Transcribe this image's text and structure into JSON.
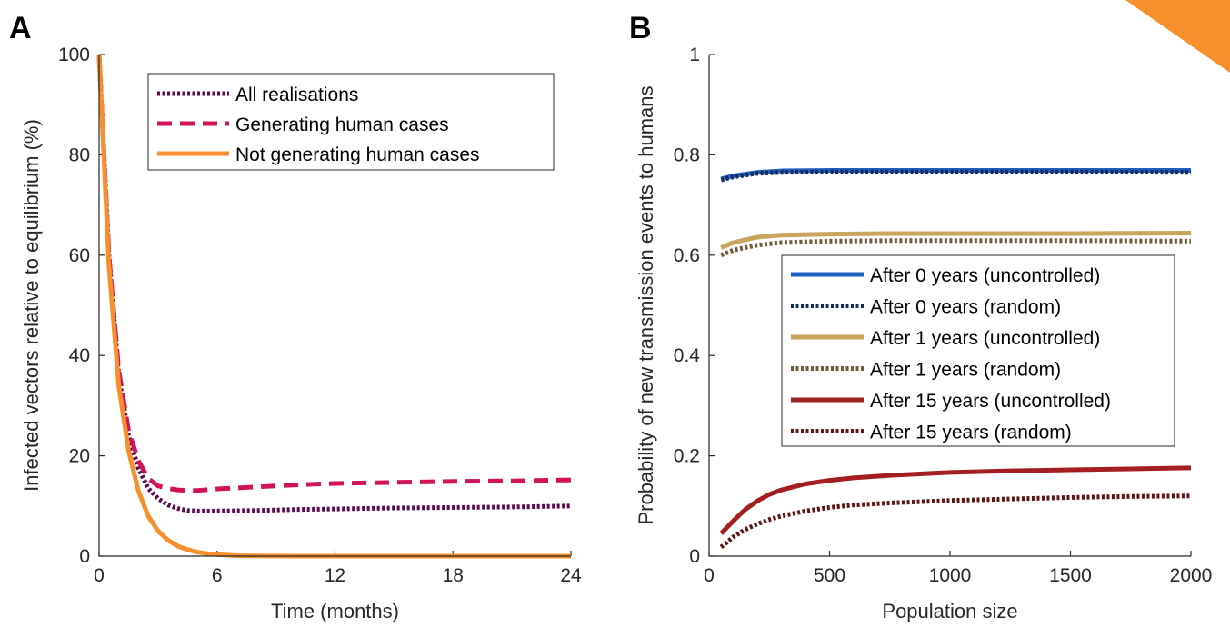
{
  "chart_data": [
    {
      "panel": "A",
      "type": "line",
      "xlabel": "Time (months)",
      "ylabel": "Infected vectors relative to equilibrium (%)",
      "xlim": [
        0,
        24
      ],
      "ylim": [
        0,
        100
      ],
      "xticks": [
        "0",
        "6",
        "12",
        "18",
        "24"
      ],
      "yticks": [
        "0",
        "20",
        "40",
        "60",
        "80",
        "100"
      ],
      "legend_position": "top-right",
      "series": [
        {
          "name": "All realisations",
          "color": "#5c0a4e",
          "style": "dotted",
          "x": [
            0,
            0.5,
            1,
            1.5,
            2,
            2.5,
            3,
            3.5,
            4,
            4.5,
            5,
            6,
            8,
            10,
            12,
            15,
            18,
            21,
            24
          ],
          "y": [
            100,
            60,
            36,
            24,
            17.5,
            13.5,
            11.5,
            10.2,
            9.5,
            9.1,
            9.0,
            9.0,
            9.1,
            9.3,
            9.4,
            9.6,
            9.7,
            9.8,
            10.0
          ]
        },
        {
          "name": "Generating human cases",
          "color": "#d1145a",
          "style": "dashed",
          "x": [
            0,
            0.5,
            1,
            1.5,
            2,
            2.5,
            3,
            3.5,
            4,
            4.5,
            5,
            6,
            8,
            10,
            12,
            15,
            18,
            21,
            24
          ],
          "y": [
            100,
            60,
            37,
            25,
            19,
            15.5,
            14,
            13.5,
            13.2,
            13.1,
            13.1,
            13.4,
            13.8,
            14.2,
            14.5,
            14.7,
            14.9,
            15.0,
            15.2
          ]
        },
        {
          "name": "Not generating human cases",
          "color": "#f7902c",
          "style": "solid",
          "x": [
            0,
            0.5,
            1,
            1.5,
            2,
            2.5,
            3,
            3.5,
            4,
            4.5,
            5,
            5.5,
            6,
            7,
            8,
            10,
            12,
            18,
            24
          ],
          "y": [
            100,
            58,
            34,
            21,
            13,
            8,
            5,
            3.2,
            2,
            1.3,
            0.8,
            0.5,
            0.3,
            0.1,
            0.05,
            0,
            0,
            0,
            0
          ]
        }
      ]
    },
    {
      "panel": "B",
      "type": "line",
      "xlabel": "Population size",
      "ylabel": "Probability of new transmission events to humans",
      "xlim": [
        0,
        2000
      ],
      "ylim": [
        0,
        1
      ],
      "xticks": [
        "0",
        "500",
        "1000",
        "1500",
        "2000"
      ],
      "yticks": [
        "0",
        "0.2",
        "0.4",
        "0.6",
        "0.8",
        "1"
      ],
      "legend_position": "center-right",
      "series": [
        {
          "name": "After 0 years (uncontrolled)",
          "color": "#1f5fbf",
          "style": "solid",
          "x": [
            50,
            100,
            200,
            300,
            500,
            750,
            1000,
            1500,
            2000
          ],
          "y": [
            0.752,
            0.758,
            0.765,
            0.768,
            0.769,
            0.769,
            0.769,
            0.769,
            0.769
          ]
        },
        {
          "name": "After 0 years (random)",
          "color": "#152b5c",
          "style": "dotted",
          "x": [
            50,
            100,
            200,
            300,
            500,
            750,
            1000,
            1500,
            2000
          ],
          "y": [
            0.75,
            0.756,
            0.763,
            0.765,
            0.766,
            0.766,
            0.766,
            0.766,
            0.765
          ]
        },
        {
          "name": "After 1 years (uncontrolled)",
          "color": "#c9a55c",
          "style": "solid",
          "x": [
            50,
            100,
            200,
            300,
            500,
            750,
            1000,
            1500,
            2000
          ],
          "y": [
            0.615,
            0.625,
            0.636,
            0.64,
            0.642,
            0.643,
            0.643,
            0.643,
            0.644
          ]
        },
        {
          "name": "After 1 years (random)",
          "color": "#6e5a3a",
          "style": "dotted",
          "x": [
            50,
            100,
            200,
            300,
            500,
            750,
            1000,
            1500,
            2000
          ],
          "y": [
            0.6,
            0.61,
            0.62,
            0.625,
            0.628,
            0.629,
            0.629,
            0.629,
            0.628
          ]
        },
        {
          "name": "After 15 years (uncontrolled)",
          "color": "#a31e1e",
          "style": "solid",
          "x": [
            50,
            100,
            150,
            200,
            250,
            300,
            400,
            500,
            600,
            750,
            1000,
            1250,
            1500,
            1750,
            2000
          ],
          "y": [
            0.045,
            0.07,
            0.093,
            0.11,
            0.123,
            0.132,
            0.144,
            0.151,
            0.156,
            0.161,
            0.167,
            0.17,
            0.172,
            0.174,
            0.176
          ]
        },
        {
          "name": "After 15 years (random)",
          "color": "#5e1414",
          "style": "dotted",
          "x": [
            50,
            100,
            150,
            200,
            250,
            300,
            400,
            500,
            600,
            750,
            1000,
            1250,
            1500,
            1750,
            2000
          ],
          "y": [
            0.018,
            0.038,
            0.053,
            0.064,
            0.073,
            0.08,
            0.09,
            0.097,
            0.102,
            0.106,
            0.111,
            0.114,
            0.117,
            0.119,
            0.12
          ]
        }
      ]
    }
  ],
  "orange_flag": {
    "color": "#f7902c"
  }
}
